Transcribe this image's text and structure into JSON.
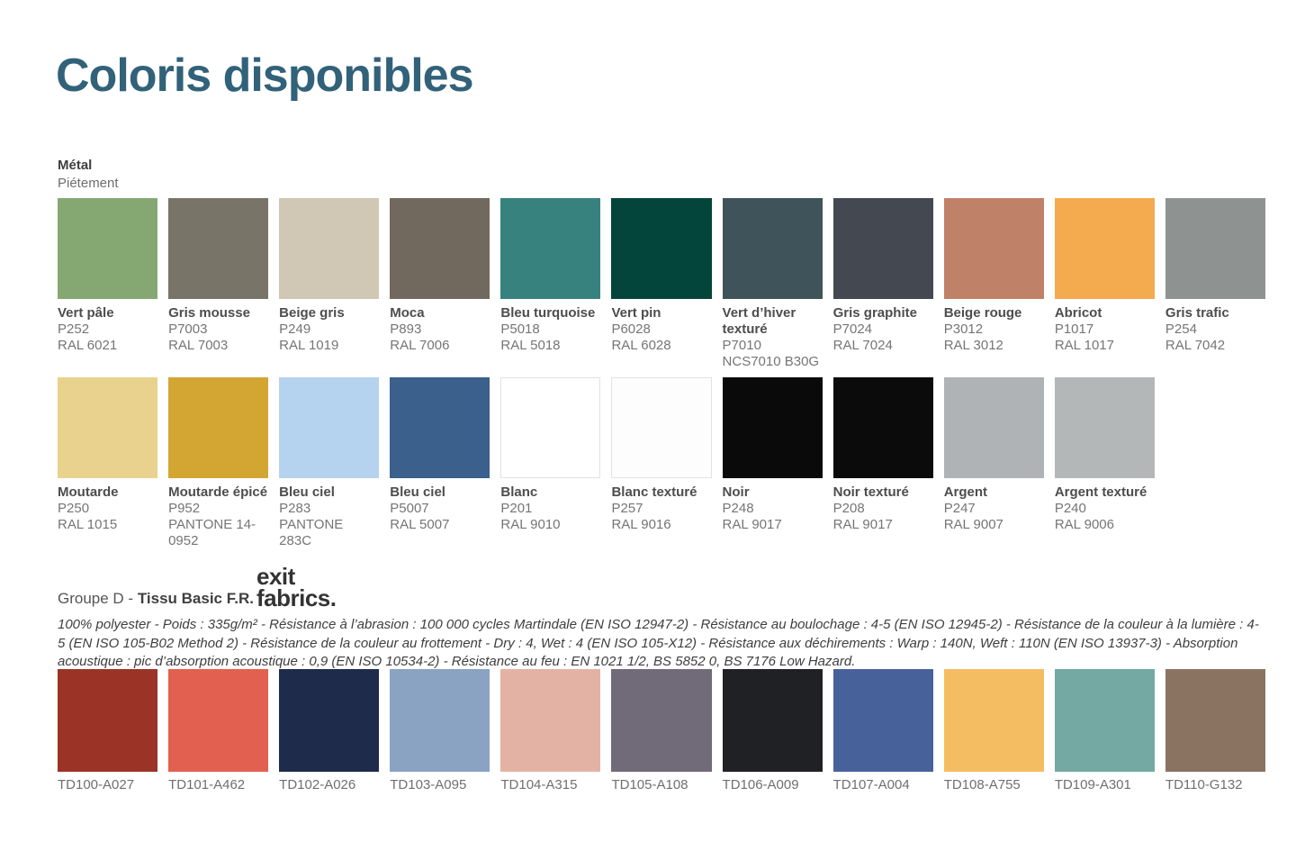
{
  "title": "Coloris disponibles",
  "accent_color": "#316279",
  "metal": {
    "heading": "Métal",
    "subheading": "Piétement",
    "row1": [
      {
        "name": "Vert pâle",
        "code1": "P252",
        "code2": "RAL 6021",
        "color": "#85a873"
      },
      {
        "name": "Gris mousse",
        "code1": "P7003",
        "code2": "RAL 7003",
        "color": "#787468"
      },
      {
        "name": "Beige gris",
        "code1": "P249",
        "code2": "RAL 1019",
        "color": "#d0c7b5"
      },
      {
        "name": "Moca",
        "code1": "P893",
        "code2": "RAL 7006",
        "color": "#72695e"
      },
      {
        "name": "Bleu turquoise",
        "code1": "P5018",
        "code2": "RAL 5018",
        "color": "#37827f"
      },
      {
        "name": "Vert pin",
        "code1": "P6028",
        "code2": "RAL 6028",
        "color": "#04453b"
      },
      {
        "name": "Vert d’hiver texturé",
        "code1": "P7010",
        "code2": "NCS7010 B30G",
        "color": "#3e545a",
        "wrap": true
      },
      {
        "name": "Gris graphite",
        "code1": "P7024",
        "code2": "RAL 7024",
        "color": "#444851"
      },
      {
        "name": "Beige rouge",
        "code1": "P3012",
        "code2": "RAL 3012",
        "color": "#c08169"
      },
      {
        "name": "Abricot",
        "code1": "P1017",
        "code2": "RAL 1017",
        "color": "#f4aa4f"
      },
      {
        "name": "Gris trafic",
        "code1": "P254",
        "code2": "RAL 7042",
        "color": "#8e9291"
      }
    ],
    "row2": [
      {
        "name": "Moutarde",
        "code1": "P250",
        "code2": "RAL 1015",
        "color": "#e8d28d"
      },
      {
        "name": "Moutarde épicé",
        "code1": "P952",
        "code2": "PANTONE 14-0952",
        "color": "#d3a634",
        "wrap_code": true
      },
      {
        "name": "Bleu ciel",
        "code1": "P283",
        "code2": "PANTONE 283C",
        "color": "#b5d3ee"
      },
      {
        "name": "Bleu ciel",
        "code1": "P5007",
        "code2": "RAL 5007",
        "color": "#3a608b"
      },
      {
        "name": "Blanc",
        "code1": "P201",
        "code2": "RAL 9010",
        "color": "#ffffff",
        "border": "#e2e2e2"
      },
      {
        "name": "Blanc texturé",
        "code1": "P257",
        "code2": "RAL 9016",
        "color": "#fdfdfd",
        "border": "#e2e2e2"
      },
      {
        "name": "Noir",
        "code1": "P248",
        "code2": "RAL 9017",
        "color": "#0a0a0a"
      },
      {
        "name": "Noir texturé",
        "code1": "P208",
        "code2": "RAL 9017",
        "color": "#0b0b0b"
      },
      {
        "name": "Argent",
        "code1": "P247",
        "code2": "RAL 9007",
        "color": "#b0b3b5"
      },
      {
        "name": "Argent texturé",
        "code1": "P240",
        "code2": "RAL 9006",
        "color": "#b4b7b8"
      }
    ]
  },
  "fabric": {
    "group_prefix": "Groupe D - ",
    "group_name": "Tissu Basic F.R.",
    "logo_line1": "exit",
    "logo_line2": "fabrics.",
    "description": "100% polyester - Poids : 335g/m² - Résistance à l’abrasion : 100 000 cycles Martindale (EN ISO 12947-2) - Résistance au boulochage : 4-5 (EN ISO 12945-2) - Résistance de la couleur à la lumière : 4-5 (EN ISO 105-B02 Method 2) - Résistance de la couleur au frottement - Dry : 4, Wet : 4 (EN ISO 105-X12) - Résistance aux déchirements : Warp : 140N, Weft : 110N (EN ISO 13937-3) - Absorption acoustique : pic d’absorption acoustique :  0,9 (EN ISO 10534-2) - Résistance au feu : EN 1021 1/2, BS 5852 0, BS 7176 Low Hazard.",
    "swatches": [
      {
        "code": "TD100-A027",
        "color": "#9b3427"
      },
      {
        "code": "TD101-A462",
        "color": "#e2604f"
      },
      {
        "code": "TD102-A026",
        "color": "#1e2b4a"
      },
      {
        "code": "TD103-A095",
        "color": "#8ba3c2"
      },
      {
        "code": "TD104-A315",
        "color": "#e4b2a5"
      },
      {
        "code": "TD105-A108",
        "color": "#716b79"
      },
      {
        "code": "TD106-A009",
        "color": "#202124"
      },
      {
        "code": "TD107-A004",
        "color": "#47619b"
      },
      {
        "code": "TD108-A755",
        "color": "#f5bd62"
      },
      {
        "code": "TD109-A301",
        "color": "#73a8a3"
      },
      {
        "code": "TD110-G132",
        "color": "#8b7361"
      }
    ]
  }
}
